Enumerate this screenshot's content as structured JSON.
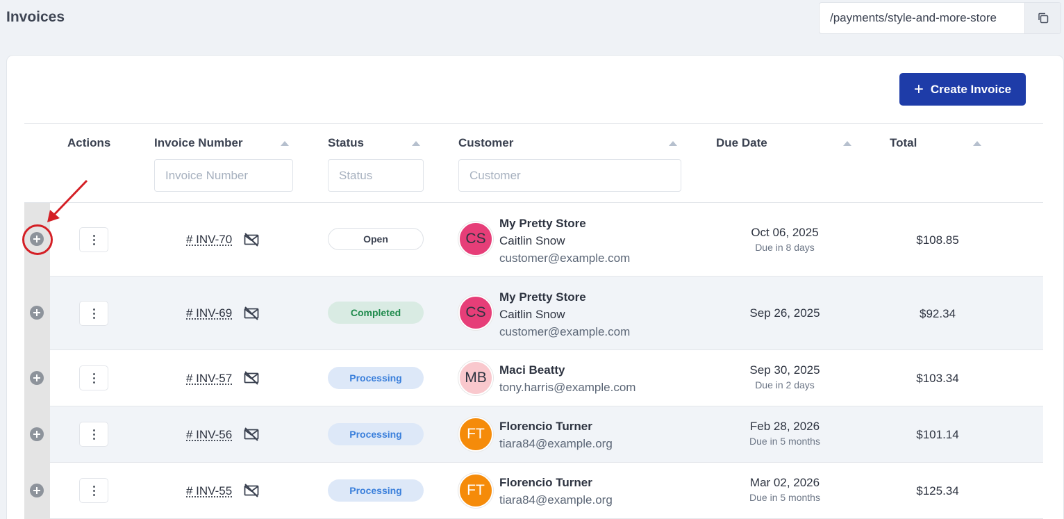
{
  "header": {
    "title": "Invoices",
    "url": "/payments/style-and-more-store",
    "copy_icon": "copy-icon"
  },
  "toolbar": {
    "create_label": "Create Invoice",
    "create_icon": "plus-icon"
  },
  "table": {
    "columns": {
      "actions": "Actions",
      "invoice_number": "Invoice Number",
      "status": "Status",
      "customer": "Customer",
      "due_date": "Due Date",
      "total": "Total"
    },
    "filters": {
      "invoice_number_placeholder": "Invoice Number",
      "status_placeholder": "Status",
      "customer_placeholder": "Customer"
    },
    "rows": [
      {
        "invoice": "# INV-70",
        "status": "Open",
        "status_kind": "open",
        "avatar_initials": "CS",
        "avatar_color": "#e63e78",
        "company": "My Pretty Store",
        "person": "Caitlin Snow",
        "email": "customer@example.com",
        "due_date": "Oct 06, 2025",
        "due_relative": "Due in 8 days",
        "total": "$108.85"
      },
      {
        "invoice": "# INV-69",
        "status": "Completed",
        "status_kind": "completed",
        "avatar_initials": "CS",
        "avatar_color": "#e63e78",
        "company": "My Pretty Store",
        "person": "Caitlin Snow",
        "email": "customer@example.com",
        "due_date": "Sep 26, 2025",
        "due_relative": "",
        "total": "$92.34"
      },
      {
        "invoice": "# INV-57",
        "status": "Processing",
        "status_kind": "processing",
        "avatar_initials": "MB",
        "avatar_color": "#f9c8cd",
        "company": "Maci Beatty",
        "person": "",
        "email": "tony.harris@example.com",
        "due_date": "Sep 30, 2025",
        "due_relative": "Due in 2 days",
        "total": "$103.34"
      },
      {
        "invoice": "# INV-56",
        "status": "Processing",
        "status_kind": "processing",
        "avatar_initials": "FT",
        "avatar_color": "#f58b0a",
        "company": "Florencio Turner",
        "person": "",
        "email": "tiara84@example.org",
        "due_date": "Feb 28, 2026",
        "due_relative": "Due in 5 months",
        "total": "$101.14"
      },
      {
        "invoice": "# INV-55",
        "status": "Processing",
        "status_kind": "processing",
        "avatar_initials": "FT",
        "avatar_color": "#f58b0a",
        "company": "Florencio Turner",
        "person": "",
        "email": "tiara84@example.org",
        "due_date": "Mar 02, 2026",
        "due_relative": "Due in 5 months",
        "total": "$125.34"
      }
    ]
  },
  "annotation": {
    "color": "#d41f25"
  }
}
